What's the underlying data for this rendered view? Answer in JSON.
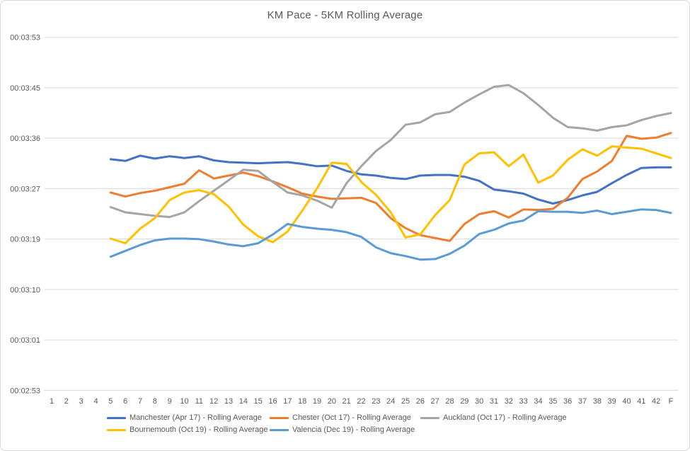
{
  "chart_data": {
    "type": "line",
    "title": "KM Pace - 5KM Rolling Average",
    "x_categories": [
      "1",
      "2",
      "3",
      "4",
      "5",
      "6",
      "7",
      "8",
      "9",
      "10",
      "11",
      "12",
      "13",
      "14",
      "15",
      "16",
      "17",
      "18",
      "19",
      "20",
      "21",
      "22",
      "23",
      "24",
      "25",
      "26",
      "27",
      "28",
      "29",
      "30",
      "31",
      "32",
      "33",
      "34",
      "35",
      "36",
      "37",
      "38",
      "39",
      "40",
      "41",
      "42",
      "F"
    ],
    "y_axis": {
      "format": "hh:mm:ss pace per km",
      "ticks": [
        {
          "label": "00:03:53",
          "seconds": 233.28
        },
        {
          "label": "00:03:45",
          "seconds": 224.64
        },
        {
          "label": "00:03:36",
          "seconds": 216.0
        },
        {
          "label": "00:03:27",
          "seconds": 207.36
        },
        {
          "label": "00:03:19",
          "seconds": 198.72
        },
        {
          "label": "00:03:10",
          "seconds": 190.08
        },
        {
          "label": "00:03:01",
          "seconds": 181.44
        },
        {
          "label": "00:02:53",
          "seconds": 172.8
        }
      ],
      "min_seconds": 172.8,
      "max_seconds": 233.28
    },
    "grid": true,
    "legend_position": "bottom",
    "colors": {
      "text": "#595959",
      "gridline": "#d9d9d9",
      "border": "#d7d7d7"
    },
    "series": [
      {
        "name": "Manchester (Apr 17) - Rolling Average",
        "color": "#4472C4",
        "values_seconds": [
          null,
          null,
          null,
          null,
          212.4,
          212.1,
          213.0,
          212.5,
          212.9,
          212.6,
          212.9,
          212.2,
          211.9,
          211.8,
          211.7,
          211.8,
          211.9,
          211.6,
          211.2,
          211.3,
          210.4,
          209.8,
          209.6,
          209.2,
          209.0,
          209.6,
          209.7,
          209.7,
          209.4,
          208.7,
          207.2,
          206.9,
          206.5,
          205.5,
          204.8,
          205.4,
          206.2,
          206.8,
          208.3,
          209.7,
          210.9,
          211.0,
          211.0
        ]
      },
      {
        "name": "Chester (Oct 17) - Rolling Average",
        "color": "#ED7D31",
        "values_seconds": [
          null,
          null,
          null,
          null,
          206.7,
          206.0,
          206.6,
          207.0,
          207.6,
          208.2,
          210.5,
          209.1,
          209.6,
          210.1,
          209.5,
          208.6,
          207.6,
          206.5,
          206.0,
          205.6,
          205.7,
          205.8,
          204.9,
          202.3,
          200.6,
          199.4,
          198.9,
          198.4,
          201.3,
          203.0,
          203.5,
          202.4,
          203.8,
          203.7,
          203.9,
          205.8,
          209.0,
          210.3,
          212.1,
          216.4,
          215.9,
          216.1,
          216.9
        ]
      },
      {
        "name": "Auckland (Oct 17) - Rolling Average",
        "color": "#A5A5A5",
        "values_seconds": [
          null,
          null,
          null,
          null,
          204.2,
          203.3,
          203.0,
          202.7,
          202.5,
          203.3,
          205.2,
          207.0,
          208.8,
          210.6,
          210.4,
          208.5,
          206.7,
          206.2,
          205.3,
          204.1,
          208.3,
          211.2,
          213.8,
          215.7,
          218.3,
          218.7,
          220.1,
          220.5,
          222.1,
          223.5,
          224.8,
          225.1,
          223.7,
          221.7,
          219.5,
          217.9,
          217.7,
          217.3,
          217.9,
          218.2,
          219.1,
          219.8,
          220.3
        ]
      },
      {
        "name": "Bournemouth (Oct 19) - Rolling Average",
        "color": "#FFC000",
        "values_seconds": [
          null,
          null,
          null,
          null,
          198.8,
          198.0,
          200.5,
          202.3,
          205.4,
          206.7,
          207.1,
          206.4,
          204.3,
          201.2,
          199.2,
          198.2,
          200.0,
          203.6,
          207.4,
          211.8,
          211.6,
          208.5,
          206.3,
          203.3,
          199.0,
          199.5,
          202.8,
          205.4,
          211.5,
          213.4,
          213.6,
          211.2,
          213.2,
          208.4,
          209.6,
          212.3,
          214.1,
          213.0,
          214.6,
          214.4,
          214.2,
          213.4,
          212.6
        ]
      },
      {
        "name": "Valencia (Dec 19) - Rolling Average",
        "color": "#5B9BD5",
        "values_seconds": [
          null,
          null,
          null,
          null,
          195.7,
          196.7,
          197.7,
          198.5,
          198.8,
          198.8,
          198.7,
          198.3,
          197.8,
          197.5,
          198.0,
          199.5,
          201.3,
          200.8,
          200.5,
          200.3,
          199.9,
          199.1,
          197.3,
          196.3,
          195.8,
          195.2,
          195.3,
          196.2,
          197.6,
          199.6,
          200.3,
          201.4,
          201.9,
          203.5,
          203.4,
          203.4,
          203.2,
          203.6,
          203.0,
          203.4,
          203.8,
          203.7,
          203.2
        ]
      }
    ]
  }
}
